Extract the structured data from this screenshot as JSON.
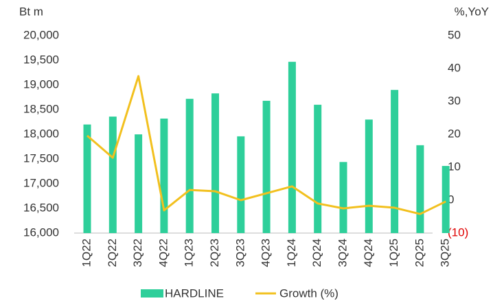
{
  "chart_data": {
    "type": "bar_line",
    "y_label": "Bt m",
    "y2_label": "%,YoY",
    "categories": [
      "1Q22",
      "2Q22",
      "3Q22",
      "4Q22",
      "1Q23",
      "2Q23",
      "3Q23",
      "4Q23",
      "1Q24",
      "2Q24",
      "3Q24",
      "4Q24",
      "1Q25",
      "2Q25",
      "3Q25"
    ],
    "series": [
      {
        "name": "HARDLINE",
        "type": "bar",
        "color": "#2ecf9a",
        "values": [
          18200,
          18360,
          18000,
          18320,
          18720,
          18830,
          17960,
          18680,
          19470,
          18600,
          17440,
          18300,
          18900,
          17780,
          17360
        ]
      },
      {
        "name": "Growth (%)",
        "type": "line",
        "axis": "y2",
        "color": "#f2c01e",
        "values": [
          19.6,
          12.9,
          37.7,
          -3.1,
          3.1,
          2.7,
          0,
          2.1,
          4.2,
          -1.0,
          -2.5,
          -1.7,
          -2.3,
          -4.2,
          -0.4
        ]
      }
    ],
    "ylim": [
      16000,
      20000
    ],
    "yticks": [
      {
        "value": 16000,
        "label": "16,000"
      },
      {
        "value": 16500,
        "label": "16,500"
      },
      {
        "value": 17000,
        "label": "17,000"
      },
      {
        "value": 17500,
        "label": "17,500"
      },
      {
        "value": 18000,
        "label": "18,000"
      },
      {
        "value": 18500,
        "label": "18,500"
      },
      {
        "value": 19000,
        "label": "19,000"
      },
      {
        "value": 19500,
        "label": "19,500"
      },
      {
        "value": 20000,
        "label": "20,000"
      }
    ],
    "y2lim": [
      -10,
      50
    ],
    "y2ticks": [
      {
        "value": -10,
        "label": "(10)"
      },
      0,
      10,
      20,
      30,
      40,
      50
    ],
    "negative_tick_color": "#e00000",
    "legend": "bottom"
  }
}
